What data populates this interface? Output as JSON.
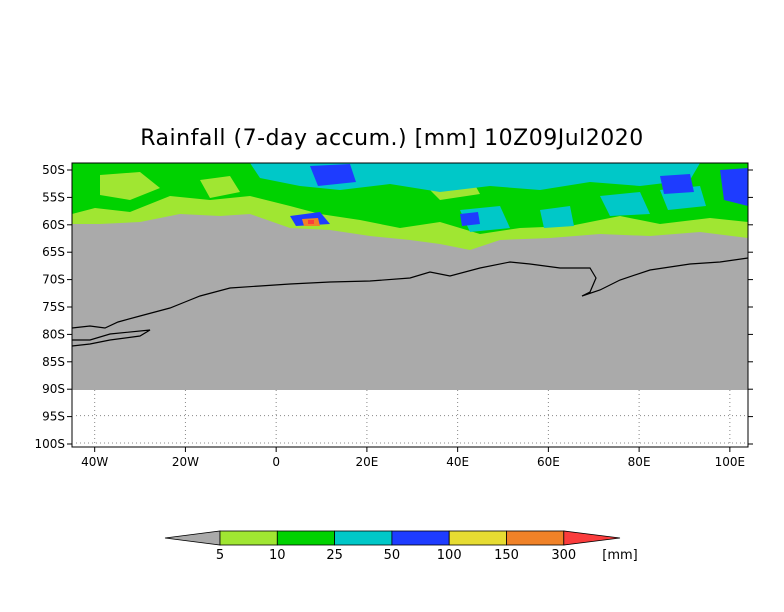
{
  "title": "Rainfall (7-day accum.) [mm] 10Z09Jul2020",
  "map": {
    "lat_labels": [
      "50S",
      "55S",
      "60S",
      "65S",
      "70S",
      "75S",
      "80S",
      "85S",
      "90S",
      "95S",
      "100S"
    ],
    "lon_labels": [
      "40W",
      "20W",
      "0",
      "20E",
      "40E",
      "60E",
      "80E",
      "100E"
    ],
    "lon_values": [
      -40,
      -20,
      0,
      20,
      40,
      60,
      80,
      100
    ],
    "lon_range": [
      -45,
      104
    ],
    "lat_range": [
      -50,
      -100
    ],
    "nodata_color": "#aaaaaa",
    "grid": true
  },
  "legend": {
    "ticks": [
      "5",
      "10",
      "25",
      "50",
      "100",
      "150",
      "300"
    ],
    "unit": "[mm]",
    "colors": {
      "below": "#aaaaaa",
      "5-10": "#a0e632",
      "10-25": "#00d200",
      "25-50": "#00c8c8",
      "50-100": "#1e3cff",
      "100-150": "#e6dc32",
      "150-300": "#f08228",
      "above": "#fa3c3c"
    }
  }
}
